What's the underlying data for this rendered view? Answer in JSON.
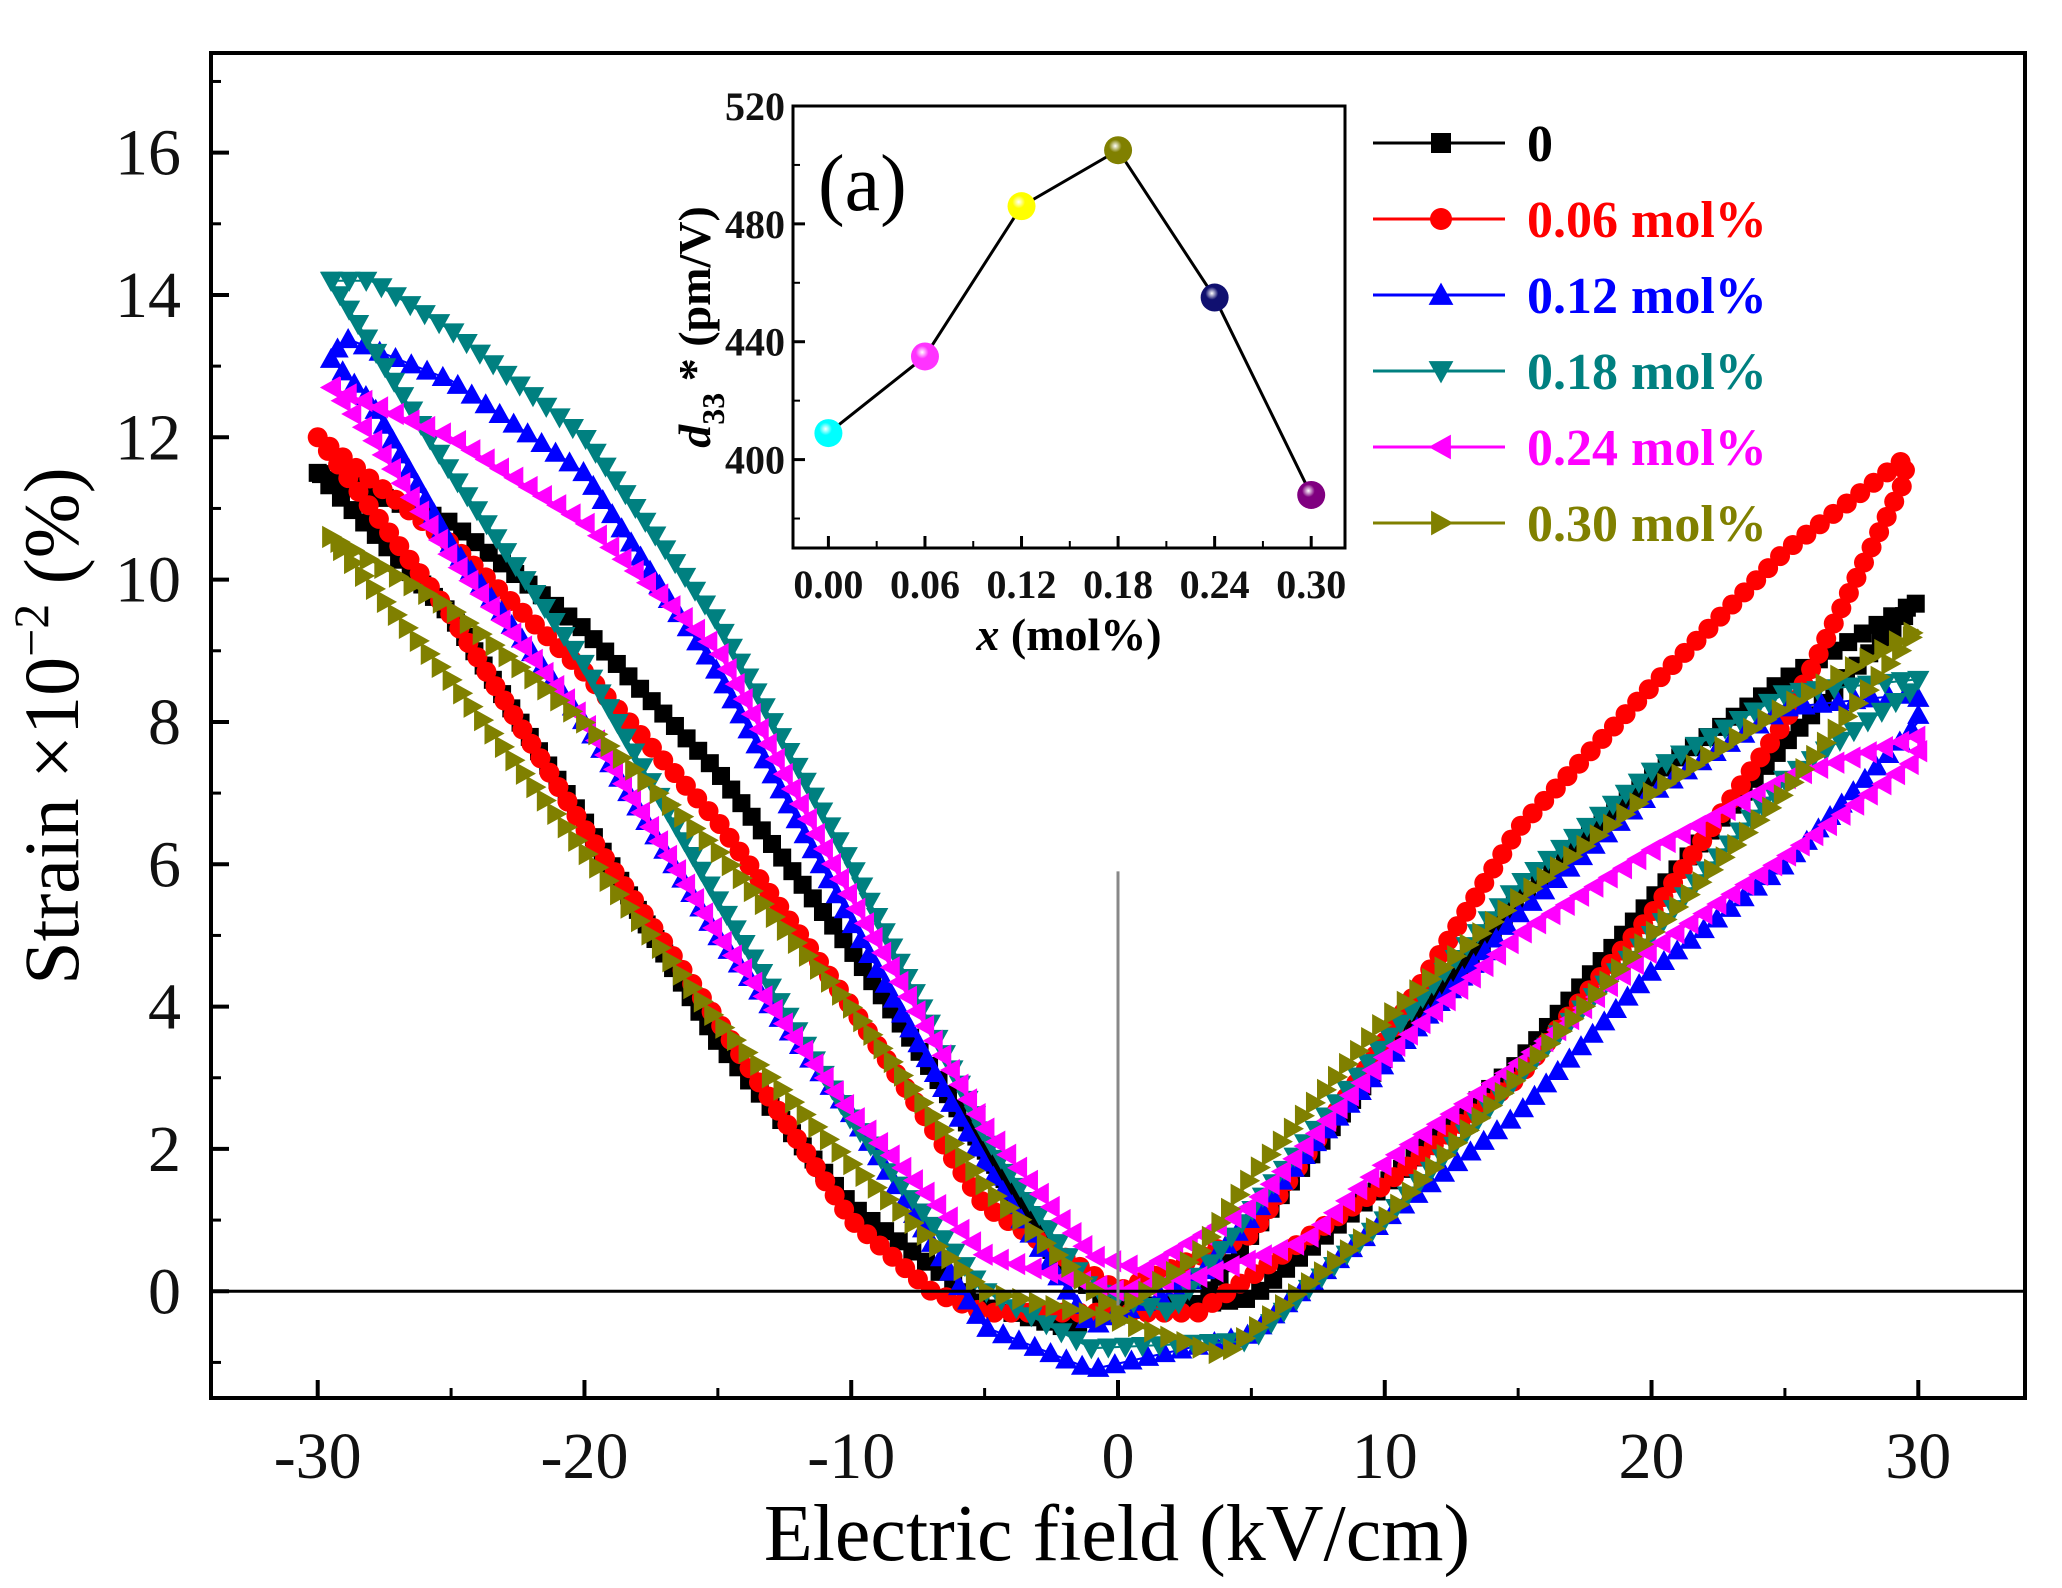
{
  "chart_data": [
    {
      "type": "line",
      "title": "",
      "xlabel": "Electric field (kV/cm)",
      "ylabel_parts": {
        "base": "Strain ×10",
        "exp": "−2",
        "unit": " (%)"
      },
      "xlim": [
        -34,
        34
      ],
      "ylim": [
        -1.5,
        17.4
      ],
      "xticks": [
        -30,
        -20,
        -10,
        0,
        10,
        20,
        30
      ],
      "xtick_labels": [
        "-30",
        "-20",
        "-10",
        "0",
        "10",
        "20",
        "30"
      ],
      "yticks": [
        0,
        2,
        4,
        6,
        8,
        10,
        12,
        14,
        16
      ],
      "ytick_labels": [
        "0",
        "2",
        "4",
        "6",
        "8",
        "10",
        "12",
        "14",
        "16"
      ],
      "grid": false,
      "legend_position": "top-right",
      "reference_lines": {
        "horizontal_y": 0,
        "vertical_x": 0,
        "vertical_top": 5.9
      },
      "series": [
        {
          "name": "0",
          "color": "#000000",
          "marker": "square",
          "loop": [
            [
              -30,
              11.5
            ],
            [
              -25,
              9.5
            ],
            [
              -20,
              6.6
            ],
            [
              -15,
              3.5
            ],
            [
              -10,
              1.2
            ],
            [
              -5,
              -0.2
            ],
            [
              -2,
              -0.5
            ],
            [
              0,
              -0.3
            ],
            [
              5,
              -0.1
            ],
            [
              10,
              1.5
            ],
            [
              15,
              3.2
            ],
            [
              20,
              5.5
            ],
            [
              25,
              7.7
            ],
            [
              30,
              9.7
            ],
            [
              25,
              8.6
            ],
            [
              20,
              7.2
            ],
            [
              15,
              5.5
            ],
            [
              10,
              3.3
            ],
            [
              5,
              0.8
            ],
            [
              3,
              -0.2
            ],
            [
              0,
              -0.2
            ],
            [
              -2,
              0.3
            ],
            [
              -5,
              2.0
            ],
            [
              -10,
              4.8
            ],
            [
              -15,
              7.3
            ],
            [
              -20,
              9.3
            ],
            [
              -25,
              10.8
            ],
            [
              -30,
              11.5
            ]
          ]
        },
        {
          "name": "0.06 mol%",
          "color": "#ff0000",
          "marker": "circle",
          "loop": [
            [
              -30,
              12.0
            ],
            [
              -25,
              9.5
            ],
            [
              -20,
              6.5
            ],
            [
              -15,
              3.8
            ],
            [
              -10,
              1.0
            ],
            [
              -7,
              0
            ],
            [
              -5,
              -0.3
            ],
            [
              0,
              -0.3
            ],
            [
              3,
              -0.3
            ],
            [
              10,
              1.5
            ],
            [
              15,
              3.0
            ],
            [
              20,
              5.3
            ],
            [
              25,
              8.0
            ],
            [
              29.5,
              11.4
            ],
            [
              29.5,
              11.7
            ],
            [
              25,
              10.4
            ],
            [
              20,
              8.5
            ],
            [
              15,
              6.5
            ],
            [
              10,
              3.5
            ],
            [
              5,
              0.8
            ],
            [
              0,
              0
            ],
            [
              -5,
              1.2
            ],
            [
              -10,
              4.0
            ],
            [
              -15,
              6.6
            ],
            [
              -20,
              8.7
            ],
            [
              -25,
              10.5
            ],
            [
              -30,
              12.0
            ]
          ]
        },
        {
          "name": "0.12 mol%",
          "color": "#0000ff",
          "marker": "triangle-up",
          "loop": [
            [
              -29.5,
              13.1
            ],
            [
              -28,
              12.5
            ],
            [
              -25,
              10.5
            ],
            [
              -20,
              8.0
            ],
            [
              -15,
              5.0
            ],
            [
              -10,
              2.5
            ],
            [
              -5,
              -0.5
            ],
            [
              -1,
              -1.1
            ],
            [
              5,
              -0.6
            ],
            [
              10,
              1.0
            ],
            [
              15,
              2.5
            ],
            [
              20,
              4.5
            ],
            [
              25,
              6.0
            ],
            [
              30,
              8.0
            ],
            [
              30,
              8.4
            ],
            [
              25,
              8.2
            ],
            [
              20,
              7.0
            ],
            [
              15,
              5.3
            ],
            [
              10,
              3.2
            ],
            [
              3,
              0.2
            ],
            [
              -1,
              -0.5
            ],
            [
              -5,
              1.8
            ],
            [
              -10,
              5.2
            ],
            [
              -15,
              8.7
            ],
            [
              -20,
              11.5
            ],
            [
              -25,
              12.8
            ],
            [
              -29,
              13.4
            ],
            [
              -29.5,
              13.1
            ]
          ]
        },
        {
          "name": "0.18 mol%",
          "color": "#008080",
          "marker": "triangle-down",
          "loop": [
            [
              -29.5,
              14.2
            ],
            [
              -27,
              12.7
            ],
            [
              -25,
              11.5
            ],
            [
              -20,
              8.8
            ],
            [
              -15,
              5.5
            ],
            [
              -10,
              2.4
            ],
            [
              -5,
              0
            ],
            [
              -1,
              -0.8
            ],
            [
              5,
              -0.7
            ],
            [
              10,
              1.0
            ],
            [
              15,
              3.0
            ],
            [
              20,
              5.0
            ],
            [
              25,
              7.2
            ],
            [
              30,
              8.5
            ],
            [
              30,
              8.6
            ],
            [
              25,
              8.4
            ],
            [
              20,
              7.3
            ],
            [
              15,
              5.7
            ],
            [
              10,
              3.5
            ],
            [
              2,
              -0.3
            ],
            [
              -1,
              0
            ],
            [
              -5,
              2.2
            ],
            [
              -10,
              6.0
            ],
            [
              -15,
              9.4
            ],
            [
              -20,
              12.0
            ],
            [
              -25,
              13.5
            ],
            [
              -28,
              14.2
            ],
            [
              -29.5,
              14.2
            ]
          ]
        },
        {
          "name": "0.24 mol%",
          "color": "#ff00ff",
          "marker": "triangle-left",
          "loop": [
            [
              -29.5,
              12.7
            ],
            [
              -28,
              12.0
            ],
            [
              -25,
              10.3
            ],
            [
              -20,
              8.0
            ],
            [
              -15,
              5.0
            ],
            [
              -10,
              2.5
            ],
            [
              -5,
              0.5
            ],
            [
              0,
              0
            ],
            [
              3,
              0.2
            ],
            [
              7,
              0.7
            ],
            [
              10,
              1.8
            ],
            [
              15,
              3.2
            ],
            [
              20,
              4.8
            ],
            [
              25,
              6.1
            ],
            [
              30,
              7.5
            ],
            [
              30,
              7.8
            ],
            [
              25,
              7.2
            ],
            [
              20,
              6.2
            ],
            [
              15,
              5.0
            ],
            [
              10,
              3.3
            ],
            [
              5,
              1.2
            ],
            [
              1,
              0.3
            ],
            [
              -1,
              0.5
            ],
            [
              -5,
              2.3
            ],
            [
              -10,
              5.5
            ],
            [
              -15,
              9.0
            ],
            [
              -20,
              10.8
            ],
            [
              -25,
              12.0
            ],
            [
              -29.5,
              12.7
            ]
          ]
        },
        {
          "name": "0.30 mol%",
          "color": "#808000",
          "marker": "triangle-right",
          "loop": [
            [
              -29.5,
              10.6
            ],
            [
              -25,
              8.6
            ],
            [
              -20,
              6.2
            ],
            [
              -15,
              3.8
            ],
            [
              -10,
              1.8
            ],
            [
              -5,
              0
            ],
            [
              0,
              -0.4
            ],
            [
              4,
              -0.9
            ],
            [
              10,
              1.0
            ],
            [
              15,
              3.0
            ],
            [
              20,
              5.0
            ],
            [
              25,
              7.0
            ],
            [
              30,
              9.3
            ],
            [
              25,
              8.2
            ],
            [
              20,
              7.0
            ],
            [
              15,
              5.5
            ],
            [
              10,
              3.8
            ],
            [
              5,
              1.6
            ],
            [
              3,
              0.5
            ],
            [
              0,
              -0.3
            ],
            [
              -5,
              1.5
            ],
            [
              -10,
              4.0
            ],
            [
              -15,
              6.2
            ],
            [
              -20,
              8.0
            ],
            [
              -25,
              9.6
            ],
            [
              -29.5,
              10.6
            ]
          ]
        }
      ]
    },
    {
      "type": "line",
      "title": "(a)",
      "xlabel_parts": {
        "var": "x",
        "rest": " (mol%)"
      },
      "ylabel_parts": {
        "var": "d",
        "sub": "33",
        "rest": " * (pm/V)"
      },
      "xlim": [
        -0.022,
        0.321
      ],
      "ylim": [
        370,
        520
      ],
      "xticks": [
        0,
        0.06,
        0.12,
        0.18,
        0.24,
        0.3
      ],
      "xtick_labels": [
        "0.00",
        "0.06",
        "0.12",
        "0.18",
        "0.24",
        "0.30"
      ],
      "yticks": [
        400,
        440,
        480,
        520
      ],
      "ytick_labels": [
        "400",
        "440",
        "480",
        "520"
      ],
      "x": [
        0,
        0.06,
        0.12,
        0.18,
        0.24,
        0.3
      ],
      "y": [
        409,
        435,
        486,
        505,
        455,
        388
      ],
      "point_colors": [
        "#00ffff",
        "#ff33ff",
        "#ffff00",
        "#808000",
        "#101070",
        "#800080"
      ]
    }
  ]
}
